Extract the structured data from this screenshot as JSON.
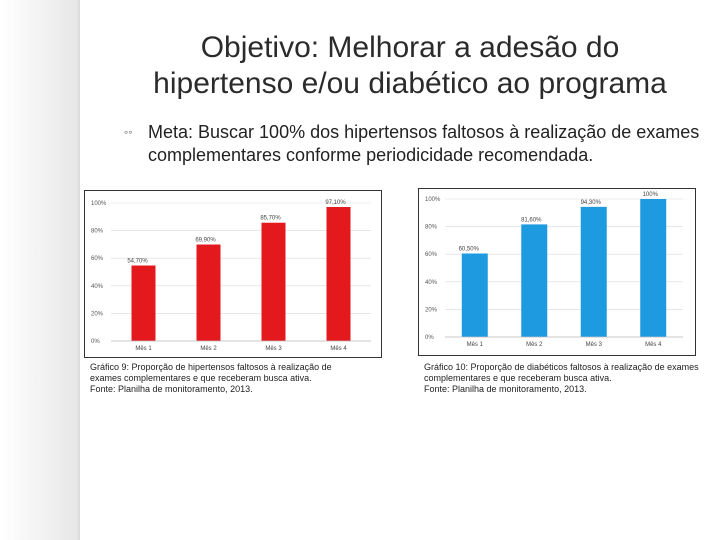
{
  "title": {
    "line1": "Objetivo: Melhorar a adesão do",
    "line2": "hipertenso e/ou diabético ao programa"
  },
  "bullet": {
    "icon": "bullet-icon",
    "text": "Meta: Buscar 100% dos hipertensos faltosos à realização de exames complementares conforme periodicidade recomendada."
  },
  "captions": {
    "left": [
      "Gráfico 9: Proporção de hipertensos faltosos à realização de",
      "exames complementares e que receberam busca ativa.",
      "Fonte: Planilha de monitoramento, 2013."
    ],
    "right": [
      "Gráfico 10: Proporção de diabéticos faltosos à realização de exames",
      "complementares e que receberam busca ativa.",
      "Fonte: Planilha de monitoramento, 2013."
    ]
  },
  "chart_data": [
    {
      "type": "bar",
      "categories": [
        "Mês 1",
        "Mês 2",
        "Mês 3",
        "Mês 4"
      ],
      "values": [
        54.7,
        69.9,
        85.7,
        97.1
      ],
      "data_labels": [
        "54,70%",
        "69,90%",
        "85,70%",
        "97,10%"
      ],
      "y_ticks": [
        "0%",
        "20%",
        "40%",
        "60%",
        "80%",
        "100%"
      ],
      "ylim": [
        0,
        100
      ],
      "color": "#e3191e",
      "title": "",
      "xlabel": "",
      "ylabel": ""
    },
    {
      "type": "bar",
      "categories": [
        "Mês 1",
        "Mês 2",
        "Mês 3",
        "Mês 4"
      ],
      "values": [
        60.5,
        81.6,
        94.3,
        100
      ],
      "data_labels": [
        "60,50%",
        "81,60%",
        "94,30%",
        "100%"
      ],
      "y_ticks": [
        "0%",
        "20%",
        "40%",
        "60%",
        "80%",
        "100%"
      ],
      "ylim": [
        0,
        100
      ],
      "color": "#1e9ae0",
      "title": "",
      "xlabel": "",
      "ylabel": ""
    }
  ]
}
